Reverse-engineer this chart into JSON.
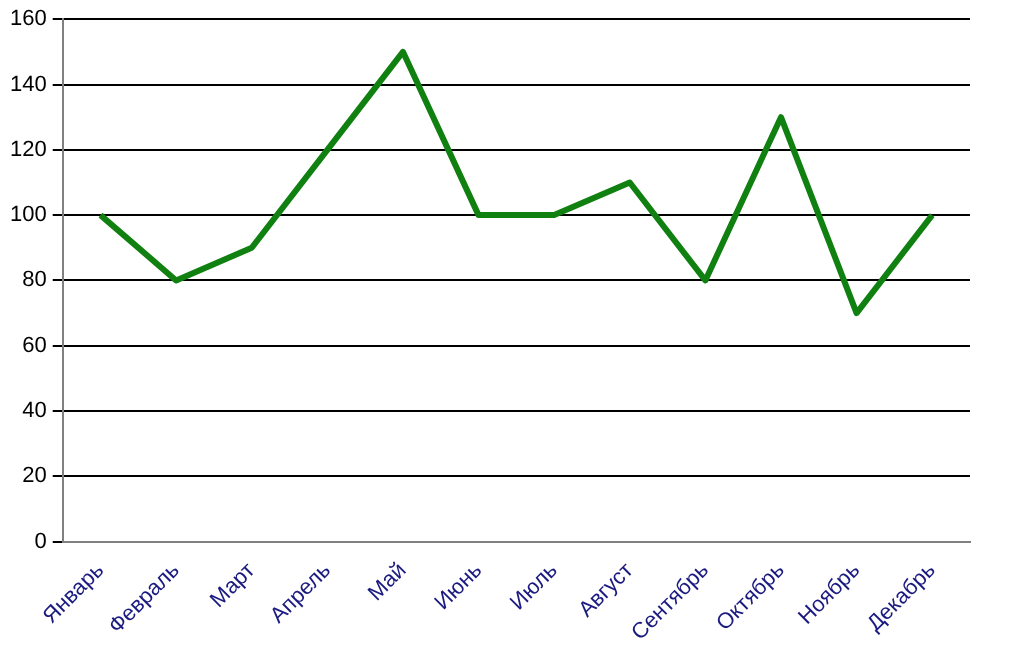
{
  "chart_data": {
    "type": "line",
    "categories": [
      "Январь",
      "Февраль",
      "Март",
      "Апрель",
      "Май",
      "Июнь",
      "Июль",
      "Август",
      "Сентябрь",
      "Октябрь",
      "Ноябрь",
      "Декабрь"
    ],
    "series": [
      {
        "color": "#108010",
        "values": [
          100,
          80,
          90,
          120,
          150,
          100,
          100,
          110,
          80,
          130,
          70,
          100
        ]
      }
    ],
    "ylim": [
      0,
      160
    ],
    "yticks": [
      0,
      20,
      40,
      60,
      80,
      100,
      120,
      140,
      160
    ],
    "grid": "y",
    "legend": false,
    "marker": "none",
    "line_style": "solid"
  }
}
